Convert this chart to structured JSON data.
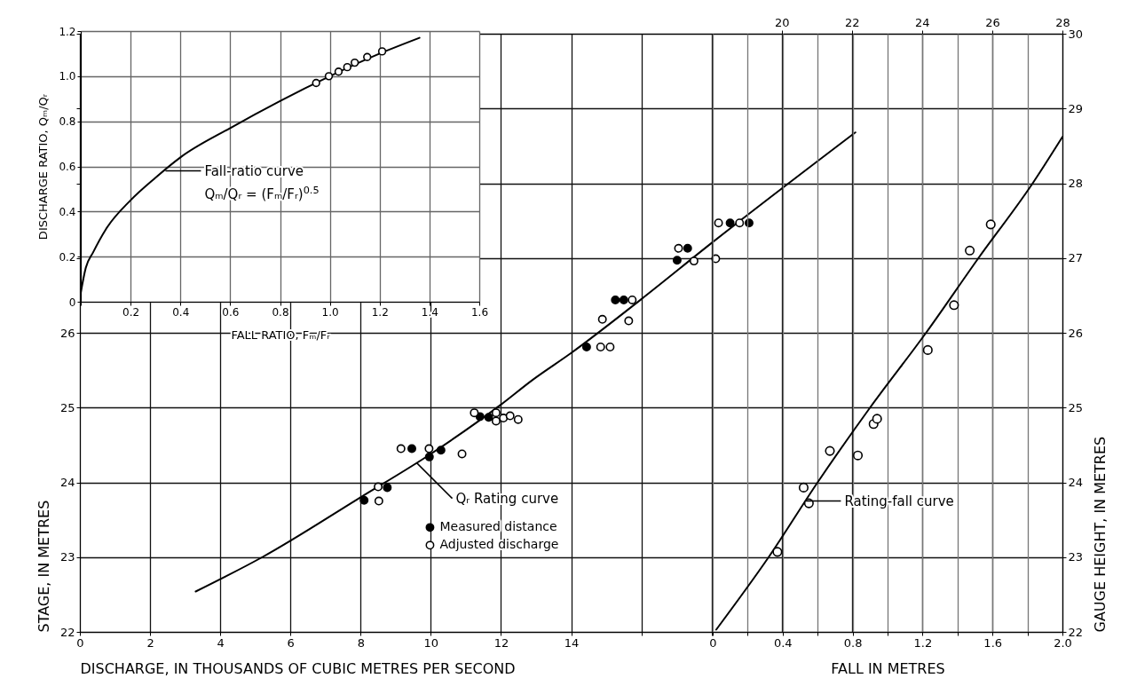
{
  "chart_data": [
    {
      "type": "scatter",
      "xlabel": "FALL RATIO, Fₘ/Fᵣ",
      "ylabel": "DISCHARGE RATIO, Qₘ/Qᵣ",
      "xlim": [
        0,
        1.6
      ],
      "ylim": [
        0,
        1.2
      ],
      "xticks": [
        {
          "value": 0,
          "label": null
        },
        0.2,
        0.4,
        0.6,
        0.8,
        {
          "value": 1,
          "label": "1.0"
        },
        1.2,
        1.4,
        1.6
      ],
      "yticks": [
        0,
        0.2,
        0.4,
        0.6,
        0.8,
        {
          "value": 1,
          "label": "1.0"
        },
        1.2
      ],
      "grid": true,
      "marker": "circle",
      "annotations": [
        {
          "text": "Fall-ratio curve",
          "x": 0.34,
          "y": 0.58
        },
        "Qₘ/Qᵣ = (Fₘ/Fᵣ)$^{0.5}$"
      ],
      "series": [
        {
          "type": "line",
          "marker": "none",
          "color": "#000000",
          "x": [
            0,
            0.02,
            0.05,
            0.1,
            0.2,
            0.3,
            0.4,
            0.6,
            0.8,
            1.0,
            1.2,
            1.36
          ],
          "values": [
            0.04,
            0.15,
            0.22,
            0.32,
            0.45,
            0.55,
            0.64,
            0.77,
            0.89,
            1.0,
            1.1,
            1.17
          ]
        },
        {
          "color": "#ffffff",
          "x": [
            0.945,
            0.996,
            1.035,
            1.07,
            1.1,
            1.15,
            1.21
          ],
          "values": [
            0.97,
            1.0,
            1.02,
            1.04,
            1.06,
            1.085,
            1.11
          ]
        }
      ]
    },
    {
      "type": "scatter",
      "xlabel": "DISCHARGE, IN THOUSANDS OF CUBIC METRES PER SECOND",
      "ylabel": "STAGE, IN METRES",
      "xlim": [
        0,
        28
      ],
      "ylim": [
        22,
        30
      ],
      "xticks": [
        0,
        2,
        4,
        6,
        8,
        10,
        12,
        14,
        {
          "value": 16,
          "label": null
        },
        {
          "value": 18,
          "label": null
        }
      ],
      "x2lim": [
        0,
        28
      ],
      "x2ticks": [
        20,
        22,
        24,
        26,
        28
      ],
      "yticks": [
        22,
        23,
        24,
        25,
        26,
        {
          "value": 27,
          "label": null
        },
        {
          "value": 28,
          "label": null
        },
        {
          "value": 29,
          "label": null
        },
        {
          "value": 30,
          "label": null
        }
      ],
      "grid": true,
      "marker": "circle",
      "legend": "bottom",
      "annotations": [
        {
          "text": "Qᵣ Rating curve",
          "x": 9.6,
          "y": 24.26
        }
      ],
      "series": [
        {
          "type": "line",
          "marker": "none",
          "color": "#000000",
          "x": [
            3.3,
            5.2,
            8,
            10,
            12,
            12.9,
            14,
            16,
            18,
            22.1
          ],
          "values": [
            22.54,
            23.0,
            23.8,
            24.38,
            25.04,
            25.37,
            25.73,
            26.45,
            27.2,
            28.68
          ]
        },
        {
          "name": "Measured distance",
          "color": "#000000",
          "x": [
            8.1,
            8.76,
            9.46,
            9.96,
            10.29,
            11.4,
            11.65,
            14.44,
            15.26,
            15.5,
            17.02,
            17.32,
            18.53,
            19.07
          ],
          "values": [
            23.76,
            23.93,
            24.45,
            24.34,
            24.43,
            24.88,
            24.87,
            25.81,
            26.44,
            26.44,
            26.97,
            27.13,
            27.47,
            27.47
          ]
        },
        {
          "name": "Adjusted discharge",
          "color": "#ffffff",
          "x": [
            8.52,
            8.5,
            9.15,
            9.95,
            10.89,
            11.24,
            11.86,
            11.86,
            12.07,
            12.26,
            12.49,
            14.84,
            15.11,
            14.89,
            15.64,
            15.74,
            17.5,
            18.12,
            17.06,
            18.2,
            18.8
          ],
          "values": [
            23.75,
            23.94,
            24.45,
            24.45,
            24.38,
            24.93,
            24.93,
            24.82,
            24.86,
            24.89,
            24.84,
            25.81,
            25.81,
            26.18,
            26.16,
            26.44,
            26.96,
            26.99,
            27.13,
            27.47,
            27.47
          ]
        }
      ]
    },
    {
      "type": "scatter",
      "xlabel": "FALL IN METRES",
      "ylabel": "GAUGE HEIGHT, IN METRES",
      "xlim": [
        0,
        2
      ],
      "ylim": [
        22,
        30
      ],
      "xticks": [
        0,
        {
          "value": 0.2,
          "label": null
        },
        0.4,
        {
          "value": 0.6,
          "label": null
        },
        0.8,
        {
          "value": 1,
          "label": null
        },
        1.2,
        {
          "value": 1.4,
          "label": null
        },
        1.6,
        {
          "value": 1.8,
          "label": null
        },
        {
          "value": 2,
          "label": "2.0"
        }
      ],
      "yticks": [
        22,
        23,
        24,
        25,
        26,
        27,
        28,
        29,
        30
      ],
      "grid": "x",
      "marker": "circle",
      "annotations": [
        {
          "text": "Rating-fall curve",
          "x": 0.53,
          "y": 23.75
        }
      ],
      "series": [
        {
          "type": "line",
          "marker": "none",
          "color": "#000000",
          "x": [
            0.02,
            0.32,
            0.6,
            0.9,
            1.22,
            1.52,
            1.83,
            2.0
          ],
          "values": [
            22.03,
            23,
            24,
            25,
            26,
            27,
            28,
            28.62
          ]
        },
        {
          "color": "#ffffff",
          "x": [
            0.37,
            0.55,
            0.52,
            0.67,
            0.83,
            0.92,
            0.94,
            1.23,
            1.38,
            1.47,
            1.59
          ],
          "values": [
            23.07,
            23.72,
            23.93,
            24.42,
            24.36,
            24.78,
            24.85,
            25.77,
            26.37,
            27.1,
            27.45
          ]
        }
      ]
    }
  ]
}
